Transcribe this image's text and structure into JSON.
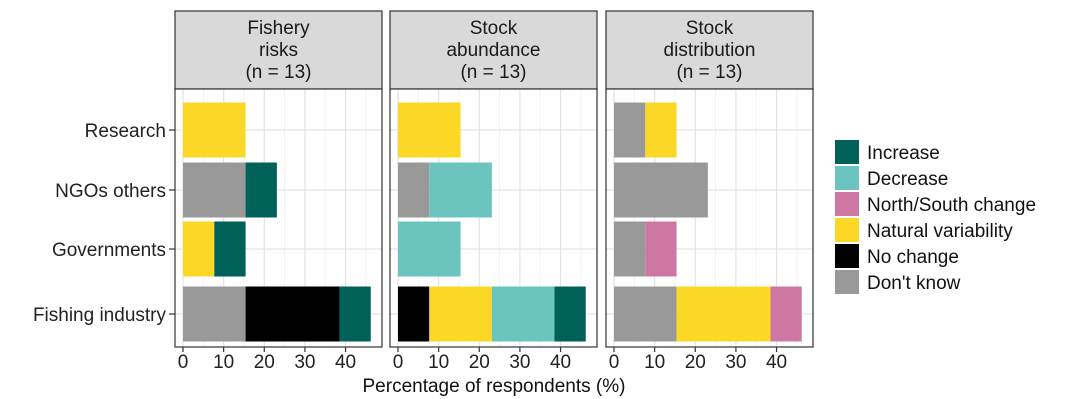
{
  "chart_data": {
    "type": "bar",
    "orientation": "horizontal",
    "stacked": true,
    "xlabel": "Percentage of respondents (%)",
    "xlim": [
      0,
      47
    ],
    "x_ticks": [
      "0",
      "10",
      "20",
      "30",
      "40"
    ],
    "grid": true,
    "legend_position": "right",
    "categories": [
      "Research",
      "NGOs others",
      "Governments",
      "Fishing industry"
    ],
    "legend": [
      {
        "name": "Increase",
        "color": "#00605a"
      },
      {
        "name": "Decrease",
        "color": "#6cc4c0"
      },
      {
        "name": "North/South change",
        "color": "#cf77a3"
      },
      {
        "name": "Natural variability",
        "color": "#fcd826"
      },
      {
        "name": "No change",
        "color": "#000000"
      },
      {
        "name": "Don't know",
        "color": "#999999"
      }
    ],
    "panels": [
      {
        "title_lines": [
          "Fishery",
          "risks",
          "(n = 13)"
        ],
        "bars": [
          {
            "category": "Research",
            "segments": [
              {
                "name": "Natural variability",
                "value": 15.4
              }
            ]
          },
          {
            "category": "NGOs others",
            "segments": [
              {
                "name": "Don't know",
                "value": 15.4
              },
              {
                "name": "Increase",
                "value": 7.7
              }
            ]
          },
          {
            "category": "Governments",
            "segments": [
              {
                "name": "Natural variability",
                "value": 7.7
              },
              {
                "name": "Increase",
                "value": 7.7
              }
            ]
          },
          {
            "category": "Fishing industry",
            "segments": [
              {
                "name": "Don't know",
                "value": 15.4
              },
              {
                "name": "No change",
                "value": 23.1
              },
              {
                "name": "Increase",
                "value": 7.7
              }
            ]
          }
        ]
      },
      {
        "title_lines": [
          "Stock",
          "abundance",
          "(n = 13)"
        ],
        "bars": [
          {
            "category": "Research",
            "segments": [
              {
                "name": "Natural variability",
                "value": 15.4
              }
            ]
          },
          {
            "category": "NGOs others",
            "segments": [
              {
                "name": "Don't know",
                "value": 7.7
              },
              {
                "name": "Decrease",
                "value": 15.4
              }
            ]
          },
          {
            "category": "Governments",
            "segments": [
              {
                "name": "Decrease",
                "value": 15.4
              }
            ]
          },
          {
            "category": "Fishing industry",
            "segments": [
              {
                "name": "No change",
                "value": 7.7
              },
              {
                "name": "Natural variability",
                "value": 15.4
              },
              {
                "name": "Decrease",
                "value": 15.4
              },
              {
                "name": "Increase",
                "value": 7.7
              }
            ]
          }
        ]
      },
      {
        "title_lines": [
          "Stock",
          "distribution",
          "(n = 13)"
        ],
        "bars": [
          {
            "category": "Research",
            "segments": [
              {
                "name": "Don't know",
                "value": 7.7
              },
              {
                "name": "Natural variability",
                "value": 7.7
              }
            ]
          },
          {
            "category": "NGOs others",
            "segments": [
              {
                "name": "Don't know",
                "value": 23.1
              }
            ]
          },
          {
            "category": "Governments",
            "segments": [
              {
                "name": "Don't know",
                "value": 7.7
              },
              {
                "name": "North/South change",
                "value": 7.7
              }
            ]
          },
          {
            "category": "Fishing industry",
            "segments": [
              {
                "name": "Don't know",
                "value": 15.4
              },
              {
                "name": "Natural variability",
                "value": 23.1
              },
              {
                "name": "North/South change",
                "value": 7.7
              }
            ]
          }
        ]
      }
    ]
  }
}
